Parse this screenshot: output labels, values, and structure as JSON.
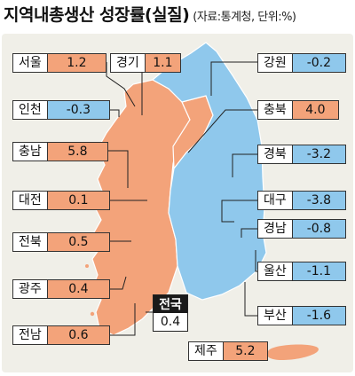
{
  "title": {
    "main": "지역내총생산 성장률(실질)",
    "source": "(자료:통계청, 단위:%)"
  },
  "colors": {
    "positive": "#f3a37a",
    "negative": "#8fc8ec",
    "background": "#f0efe8"
  },
  "national": {
    "name": "전국",
    "value": "0.4"
  },
  "regions": [
    {
      "id": "seoul",
      "name": "서울",
      "value": "1.2",
      "sign": "positive"
    },
    {
      "id": "gyeonggi",
      "name": "경기",
      "value": "1.1",
      "sign": "positive"
    },
    {
      "id": "gangwon",
      "name": "강원",
      "value": "-0.2",
      "sign": "negative"
    },
    {
      "id": "incheon",
      "name": "인천",
      "value": "-0.3",
      "sign": "negative"
    },
    {
      "id": "chungbuk",
      "name": "충북",
      "value": "4.0",
      "sign": "positive"
    },
    {
      "id": "chungnam",
      "name": "충남",
      "value": "5.8",
      "sign": "positive"
    },
    {
      "id": "gyeongbuk",
      "name": "경북",
      "value": "-3.2",
      "sign": "negative"
    },
    {
      "id": "daejeon",
      "name": "대전",
      "value": "0.1",
      "sign": "positive"
    },
    {
      "id": "daegu",
      "name": "대구",
      "value": "-3.8",
      "sign": "negative"
    },
    {
      "id": "gyeongnam",
      "name": "경남",
      "value": "-0.8",
      "sign": "negative"
    },
    {
      "id": "jeonbuk",
      "name": "전북",
      "value": "0.5",
      "sign": "positive"
    },
    {
      "id": "ulsan",
      "name": "울산",
      "value": "-1.1",
      "sign": "negative"
    },
    {
      "id": "gwangju",
      "name": "광주",
      "value": "0.4",
      "sign": "positive"
    },
    {
      "id": "busan",
      "name": "부산",
      "value": "-1.6",
      "sign": "negative"
    },
    {
      "id": "jeonnam",
      "name": "전남",
      "value": "0.6",
      "sign": "positive"
    },
    {
      "id": "jeju",
      "name": "제주",
      "value": "5.2",
      "sign": "positive"
    }
  ]
}
